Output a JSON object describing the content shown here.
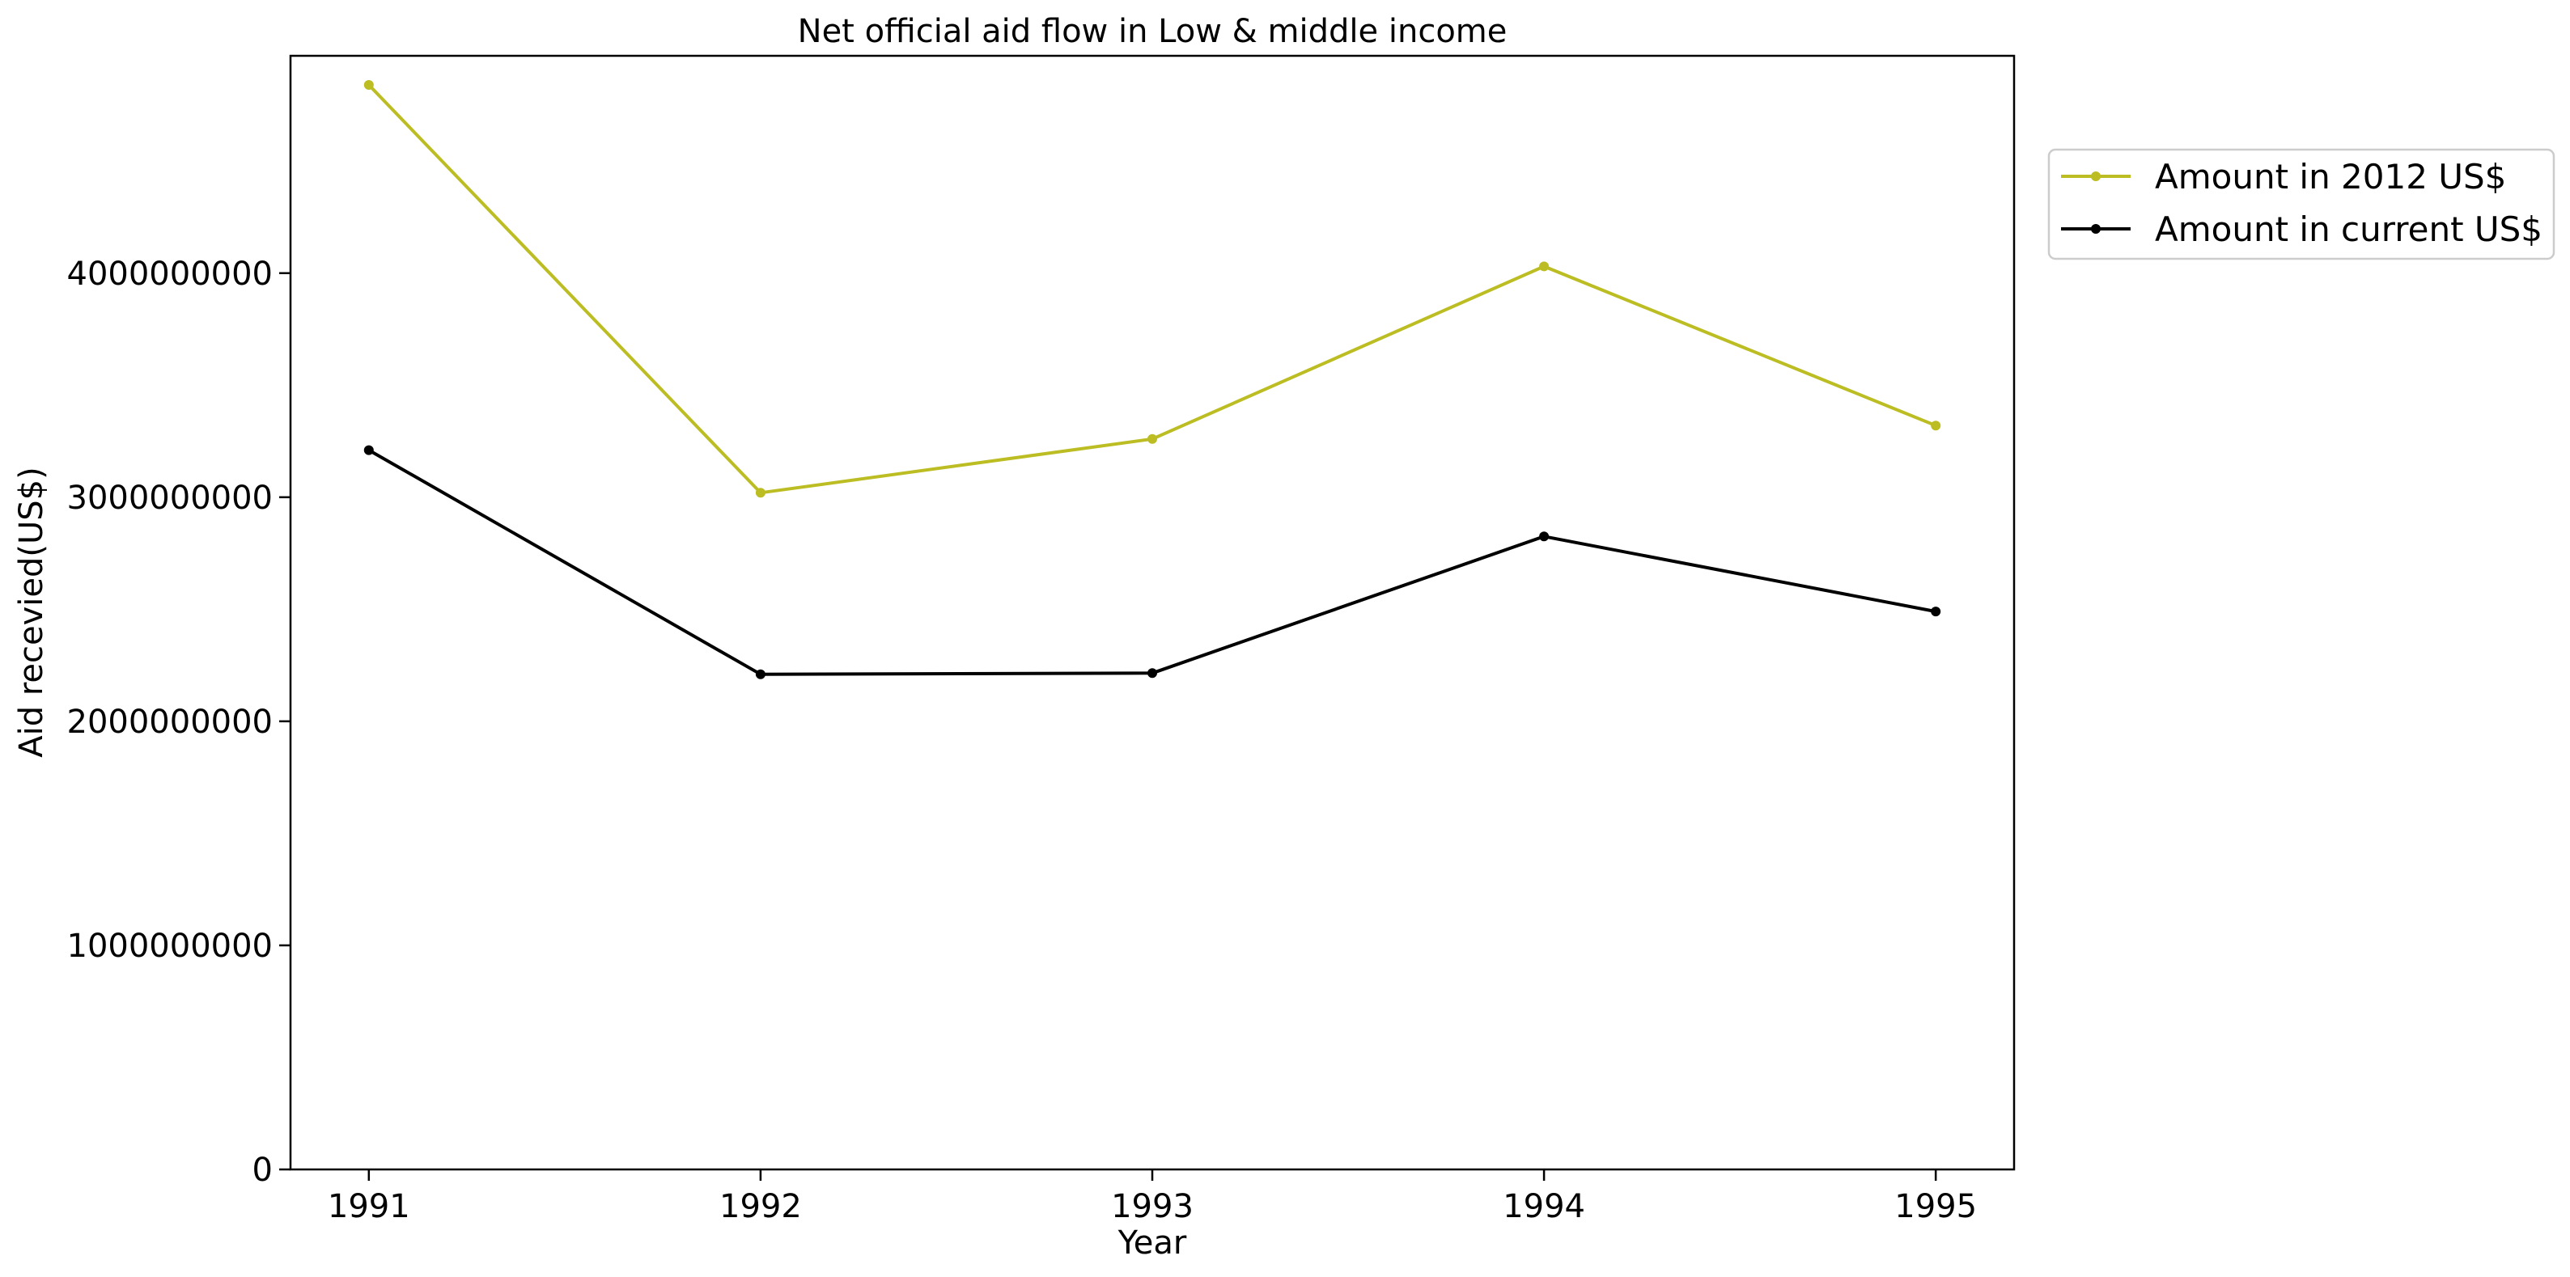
{
  "chart_data": {
    "type": "line",
    "title": "Net official aid flow in Low & middle income",
    "xlabel": "Year",
    "ylabel": "Aid recevied(US$)",
    "categories": [
      "1991",
      "1992",
      "1993",
      "1994",
      "1995"
    ],
    "x": [
      1991,
      1992,
      1993,
      1994,
      1995
    ],
    "xlim": [
      1990.8,
      1995.2
    ],
    "ylim": [
      0,
      4970000000
    ],
    "y_ticks": [
      0,
      1000000000,
      2000000000,
      3000000000,
      4000000000
    ],
    "y_tick_labels": [
      "0",
      "1000000000",
      "2000000000",
      "3000000000",
      "4000000000"
    ],
    "grid": false,
    "legend_position": "outside-top-right",
    "series": [
      {
        "name": "Amount in 2012 US$",
        "color": "#bcbd22",
        "values": [
          4840000000,
          3020000000,
          3260000000,
          4030000000,
          3320000000
        ]
      },
      {
        "name": "Amount in current US$",
        "color": "#000000",
        "values": [
          3210000000,
          2210000000,
          2215000000,
          2825000000,
          2490000000
        ]
      }
    ]
  }
}
